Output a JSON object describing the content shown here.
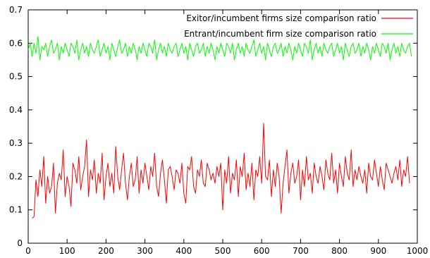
{
  "chart_data": {
    "type": "line",
    "title": "",
    "xlabel": "",
    "ylabel": "",
    "xlim": [
      0,
      1000
    ],
    "ylim": [
      0,
      0.7
    ],
    "x_ticks": [
      0,
      100,
      200,
      300,
      400,
      500,
      600,
      700,
      800,
      900,
      1000
    ],
    "y_ticks": [
      0,
      0.1,
      0.2,
      0.3,
      0.4,
      0.5,
      0.6,
      0.7
    ],
    "x_tick_labels": [
      "0",
      "100",
      "200",
      "300",
      "400",
      "500",
      "600",
      "700",
      "800",
      "900",
      "1000"
    ],
    "y_tick_labels": [
      "0",
      "0.1",
      "0.2",
      "0.3",
      "0.4",
      "0.5",
      "0.6",
      "0.7"
    ],
    "grid": false,
    "legend_position": "top-right",
    "series": [
      {
        "name": "Exitor/incumbent firms size comparison ratio",
        "color": "#ff0000",
        "x_start": 10,
        "x_step": 5,
        "values": [
          0.075,
          0.08,
          0.19,
          0.14,
          0.22,
          0.17,
          0.26,
          0.12,
          0.2,
          0.15,
          0.17,
          0.24,
          0.09,
          0.18,
          0.21,
          0.19,
          0.28,
          0.14,
          0.2,
          0.17,
          0.11,
          0.24,
          0.22,
          0.18,
          0.26,
          0.16,
          0.2,
          0.23,
          0.31,
          0.14,
          0.22,
          0.19,
          0.25,
          0.15,
          0.21,
          0.18,
          0.27,
          0.13,
          0.2,
          0.24,
          0.17,
          0.21,
          0.15,
          0.29,
          0.2,
          0.16,
          0.22,
          0.27,
          0.18,
          0.13,
          0.2,
          0.24,
          0.17,
          0.19,
          0.26,
          0.15,
          0.22,
          0.18,
          0.24,
          0.2,
          0.16,
          0.23,
          0.2,
          0.27,
          0.17,
          0.14,
          0.21,
          0.25,
          0.19,
          0.12,
          0.22,
          0.23,
          0.2,
          0.16,
          0.22,
          0.21,
          0.18,
          0.24,
          0.15,
          0.12,
          0.23,
          0.22,
          0.26,
          0.17,
          0.15,
          0.22,
          0.2,
          0.25,
          0.18,
          0.17,
          0.24,
          0.22,
          0.19,
          0.21,
          0.18,
          0.23,
          0.2,
          0.24,
          0.1,
          0.22,
          0.18,
          0.26,
          0.15,
          0.21,
          0.19,
          0.25,
          0.14,
          0.23,
          0.2,
          0.27,
          0.16,
          0.21,
          0.17,
          0.24,
          0.13,
          0.22,
          0.2,
          0.26,
          0.18,
          0.36,
          0.2,
          0.19,
          0.25,
          0.14,
          0.22,
          0.17,
          0.24,
          0.2,
          0.09,
          0.18,
          0.23,
          0.28,
          0.15,
          0.21,
          0.24,
          0.18,
          0.2,
          0.25,
          0.13,
          0.22,
          0.17,
          0.26,
          0.19,
          0.21,
          0.15,
          0.24,
          0.2,
          0.18,
          0.23,
          0.2,
          0.16,
          0.25,
          0.21,
          0.19,
          0.27,
          0.18,
          0.22,
          0.15,
          0.24,
          0.2,
          0.17,
          0.26,
          0.21,
          0.19,
          0.28,
          0.17,
          0.22,
          0.19,
          0.23,
          0.2,
          0.18,
          0.22,
          0.15,
          0.24,
          0.2,
          0.19,
          0.25,
          0.21,
          0.17,
          0.23,
          0.19,
          0.16,
          0.24,
          0.22,
          0.2,
          0.18,
          0.21,
          0.23,
          0.19,
          0.25,
          0.17,
          0.22,
          0.2,
          0.26,
          0.18
        ]
      },
      {
        "name": "Entrant/incumbent firm size comparison ratio",
        "color": "#00ff00",
        "x_start": 0,
        "x_step": 5,
        "values": [
          0.58,
          0.6,
          0.56,
          0.6,
          0.57,
          0.62,
          0.55,
          0.59,
          0.58,
          0.6,
          0.56,
          0.59,
          0.61,
          0.57,
          0.58,
          0.6,
          0.55,
          0.59,
          0.57,
          0.6,
          0.58,
          0.56,
          0.6,
          0.59,
          0.57,
          0.61,
          0.55,
          0.58,
          0.6,
          0.57,
          0.59,
          0.56,
          0.6,
          0.58,
          0.57,
          0.59,
          0.61,
          0.56,
          0.58,
          0.6,
          0.57,
          0.59,
          0.55,
          0.6,
          0.58,
          0.56,
          0.59,
          0.61,
          0.57,
          0.58,
          0.6,
          0.56,
          0.59,
          0.57,
          0.6,
          0.58,
          0.55,
          0.59,
          0.57,
          0.6,
          0.58,
          0.56,
          0.6,
          0.59,
          0.57,
          0.61,
          0.55,
          0.58,
          0.6,
          0.57,
          0.59,
          0.56,
          0.6,
          0.58,
          0.57,
          0.59,
          0.6,
          0.56,
          0.58,
          0.6,
          0.57,
          0.59,
          0.55,
          0.6,
          0.58,
          0.56,
          0.59,
          0.6,
          0.57,
          0.58,
          0.6,
          0.56,
          0.59,
          0.57,
          0.6,
          0.58,
          0.55,
          0.59,
          0.57,
          0.6,
          0.58,
          0.56,
          0.6,
          0.59,
          0.57,
          0.6,
          0.55,
          0.58,
          0.6,
          0.57,
          0.59,
          0.56,
          0.6,
          0.58,
          0.57,
          0.59,
          0.61,
          0.56,
          0.58,
          0.6,
          0.57,
          0.59,
          0.55,
          0.6,
          0.58,
          0.56,
          0.59,
          0.6,
          0.57,
          0.58,
          0.6,
          0.56,
          0.59,
          0.57,
          0.6,
          0.58,
          0.55,
          0.59,
          0.57,
          0.6,
          0.58,
          0.56,
          0.6,
          0.59,
          0.57,
          0.61,
          0.55,
          0.58,
          0.6,
          0.57,
          0.59,
          0.56,
          0.6,
          0.58,
          0.57,
          0.59,
          0.6,
          0.56,
          0.58,
          0.6,
          0.57,
          0.59,
          0.55,
          0.6,
          0.58,
          0.56,
          0.59,
          0.6,
          0.57,
          0.58,
          0.6,
          0.56,
          0.59,
          0.57,
          0.6,
          0.58,
          0.55,
          0.59,
          0.57,
          0.6,
          0.58,
          0.56,
          0.6,
          0.59,
          0.57,
          0.6,
          0.55,
          0.58,
          0.6,
          0.57,
          0.59,
          0.56,
          0.6,
          0.58,
          0.57,
          0.59,
          0.6,
          0.56
        ]
      }
    ]
  }
}
